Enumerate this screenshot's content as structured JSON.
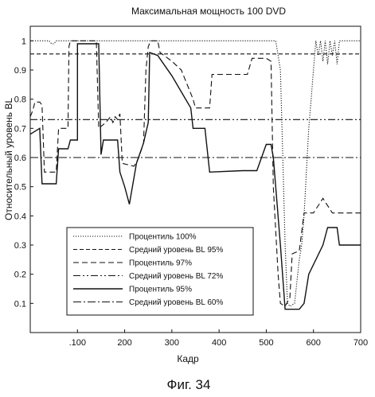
{
  "chart_data": {
    "type": "line",
    "title": "Максимальная мощность 100 DVD",
    "xlabel": "Кадр",
    "ylabel": "Относительный уровень BL",
    "caption": "Фиг. 34",
    "xlim": [
      0,
      700
    ],
    "ylim": [
      0,
      1.05
    ],
    "x_ticks": [
      100,
      200,
      300,
      400,
      500,
      600,
      700
    ],
    "x_tick_labels": [
      ".100",
      "200",
      "300",
      "400",
      "500",
      "600",
      "700"
    ],
    "y_ticks": [
      0.1,
      0.2,
      0.3,
      0.4,
      0.5,
      0.6,
      0.7,
      0.8,
      0.9,
      1
    ],
    "y_tick_labels": [
      "0.1",
      "0.2",
      "0.3",
      "0.4",
      "0.5",
      "0.6",
      "0.7",
      "0.8",
      "0.9",
      "1"
    ],
    "grid": false,
    "legend_position": "lower-left",
    "series": [
      {
        "name": "Процентиль 100%",
        "style": "dotted",
        "points": [
          [
            0,
            1
          ],
          [
            40,
            1
          ],
          [
            45,
            0.99
          ],
          [
            50,
            0.99
          ],
          [
            55,
            1
          ],
          [
            520,
            1
          ],
          [
            525,
            0.95
          ],
          [
            530,
            0.9
          ],
          [
            535,
            0.6
          ],
          [
            540,
            0.3
          ],
          [
            545,
            0.1
          ],
          [
            550,
            0.09
          ],
          [
            560,
            0.1
          ],
          [
            570,
            0.25
          ],
          [
            575,
            0.3
          ],
          [
            580,
            0.4
          ],
          [
            585,
            0.55
          ],
          [
            590,
            0.7
          ],
          [
            595,
            0.8
          ],
          [
            600,
            0.9
          ],
          [
            605,
            1
          ],
          [
            610,
            0.95
          ],
          [
            615,
            1
          ],
          [
            620,
            0.93
          ],
          [
            625,
            1
          ],
          [
            630,
            0.92
          ],
          [
            635,
            1
          ],
          [
            640,
            0.95
          ],
          [
            645,
            1
          ],
          [
            650,
            0.92
          ],
          [
            655,
            1
          ],
          [
            660,
            1
          ],
          [
            700,
            1
          ]
        ]
      },
      {
        "name": "Средний уровень BL 95%",
        "style": "short-dash",
        "points": [
          [
            0,
            0.955
          ],
          [
            700,
            0.955
          ]
        ]
      },
      {
        "name": "Процентиль 97%",
        "style": "dashed",
        "points": [
          [
            0,
            0.74
          ],
          [
            5,
            0.76
          ],
          [
            10,
            0.79
          ],
          [
            20,
            0.79
          ],
          [
            25,
            0.78
          ],
          [
            30,
            0.55
          ],
          [
            55,
            0.55
          ],
          [
            60,
            0.7
          ],
          [
            80,
            0.7
          ],
          [
            82,
            0.98
          ],
          [
            85,
            1
          ],
          [
            140,
            1
          ],
          [
            145,
            0.7
          ],
          [
            160,
            0.72
          ],
          [
            170,
            0.74
          ],
          [
            175,
            0.72
          ],
          [
            180,
            0.74
          ],
          [
            185,
            0.73
          ],
          [
            190,
            0.75
          ],
          [
            195,
            0.58
          ],
          [
            220,
            0.57
          ],
          [
            230,
            0.6
          ],
          [
            240,
            0.65
          ],
          [
            245,
            0.9
          ],
          [
            250,
            0.98
          ],
          [
            255,
            1
          ],
          [
            270,
            1
          ],
          [
            275,
            0.96
          ],
          [
            300,
            0.93
          ],
          [
            320,
            0.9
          ],
          [
            335,
            0.84
          ],
          [
            345,
            0.8
          ],
          [
            350,
            0.77
          ],
          [
            380,
            0.77
          ],
          [
            385,
            0.885
          ],
          [
            450,
            0.885
          ],
          [
            460,
            0.885
          ],
          [
            470,
            0.94
          ],
          [
            480,
            0.94
          ],
          [
            500,
            0.94
          ],
          [
            510,
            0.93
          ],
          [
            515,
            0.5
          ],
          [
            520,
            0.35
          ],
          [
            525,
            0.2
          ],
          [
            530,
            0.1
          ],
          [
            540,
            0.09
          ],
          [
            550,
            0.12
          ],
          [
            555,
            0.27
          ],
          [
            570,
            0.28
          ],
          [
            580,
            0.41
          ],
          [
            600,
            0.41
          ],
          [
            620,
            0.46
          ],
          [
            640,
            0.41
          ],
          [
            700,
            0.41
          ]
        ]
      },
      {
        "name": "Средний уровень BL 72%",
        "style": "dash-dot-dot",
        "points": [
          [
            0,
            0.73
          ],
          [
            700,
            0.73
          ]
        ]
      },
      {
        "name": "Процентиль 95%",
        "style": "solid",
        "points": [
          [
            0,
            0.68
          ],
          [
            20,
            0.7
          ],
          [
            25,
            0.51
          ],
          [
            55,
            0.51
          ],
          [
            60,
            0.63
          ],
          [
            80,
            0.63
          ],
          [
            85,
            0.66
          ],
          [
            100,
            0.66
          ],
          [
            100,
            0.99
          ],
          [
            145,
            0.99
          ],
          [
            150,
            0.61
          ],
          [
            155,
            0.66
          ],
          [
            185,
            0.66
          ],
          [
            190,
            0.55
          ],
          [
            200,
            0.5
          ],
          [
            210,
            0.44
          ],
          [
            225,
            0.58
          ],
          [
            240,
            0.65
          ],
          [
            250,
            0.72
          ],
          [
            253,
            0.96
          ],
          [
            270,
            0.95
          ],
          [
            300,
            0.88
          ],
          [
            340,
            0.77
          ],
          [
            345,
            0.7
          ],
          [
            370,
            0.7
          ],
          [
            380,
            0.55
          ],
          [
            450,
            0.555
          ],
          [
            480,
            0.555
          ],
          [
            490,
            0.6
          ],
          [
            500,
            0.645
          ],
          [
            510,
            0.645
          ],
          [
            515,
            0.6
          ],
          [
            520,
            0.5
          ],
          [
            530,
            0.3
          ],
          [
            540,
            0.08
          ],
          [
            560,
            0.08
          ],
          [
            570,
            0.08
          ],
          [
            580,
            0.1
          ],
          [
            590,
            0.2
          ],
          [
            620,
            0.3
          ],
          [
            630,
            0.36
          ],
          [
            650,
            0.36
          ],
          [
            655,
            0.3
          ],
          [
            680,
            0.3
          ],
          [
            700,
            0.3
          ]
        ]
      },
      {
        "name": "Средний уровень BL 60%",
        "style": "dash-dot",
        "points": [
          [
            0,
            0.6
          ],
          [
            700,
            0.6
          ]
        ]
      }
    ]
  }
}
